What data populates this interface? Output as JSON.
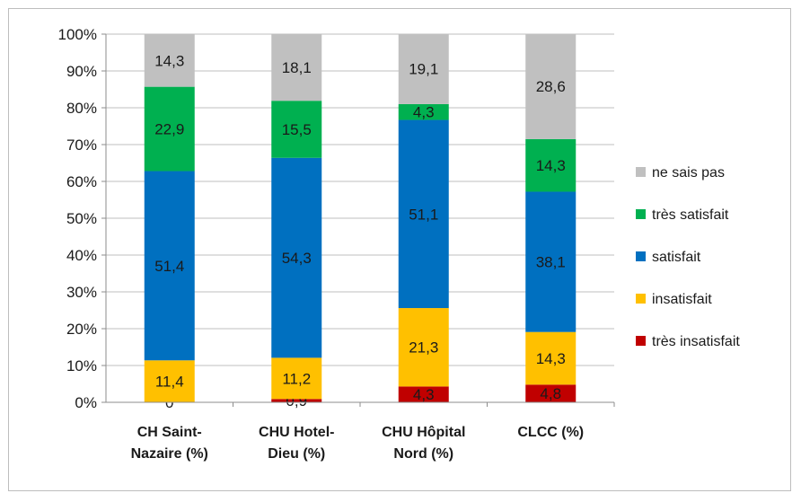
{
  "chart_data": {
    "type": "bar",
    "stacked": true,
    "percent_axis": true,
    "ylim": [
      0,
      100
    ],
    "yticks": [
      "0%",
      "10%",
      "20%",
      "30%",
      "40%",
      "50%",
      "60%",
      "70%",
      "80%",
      "90%",
      "100%"
    ],
    "categories": [
      [
        "CH Saint-",
        "Nazaire (%)"
      ],
      [
        "CHU Hotel-",
        "Dieu (%)"
      ],
      [
        "CHU Hôpital",
        "Nord (%)"
      ],
      [
        "CLCC (%)"
      ]
    ],
    "series": [
      {
        "name": "très insatisfait",
        "color": "#c00000",
        "values": [
          0,
          0.9,
          4.3,
          4.8
        ],
        "labels": [
          "0",
          "0,9",
          "4,3",
          "4,8"
        ]
      },
      {
        "name": "insatisfait",
        "color": "#ffc000",
        "values": [
          11.4,
          11.2,
          21.3,
          14.3
        ],
        "labels": [
          "11,4",
          "11,2",
          "21,3",
          "14,3"
        ]
      },
      {
        "name": "satisfait",
        "color": "#0070c0",
        "values": [
          51.4,
          54.3,
          51.1,
          38.1
        ],
        "labels": [
          "51,4",
          "54,3",
          "51,1",
          "38,1"
        ]
      },
      {
        "name": "très satisfait",
        "color": "#00b050",
        "values": [
          22.9,
          15.5,
          4.3,
          14.3
        ],
        "labels": [
          "22,9",
          "15,5",
          "4,3",
          "14,3"
        ]
      },
      {
        "name": "ne sais pas",
        "color": "#c0c0c0",
        "values": [
          14.3,
          18.1,
          19.1,
          28.6
        ],
        "labels": [
          "14,3",
          "18,1",
          "19,1",
          "28,6"
        ]
      }
    ],
    "legend_order": [
      "ne sais pas",
      "très satisfait",
      "satisfait",
      "insatisfait",
      "très insatisfait"
    ],
    "legend_position": "right",
    "grid": true
  }
}
